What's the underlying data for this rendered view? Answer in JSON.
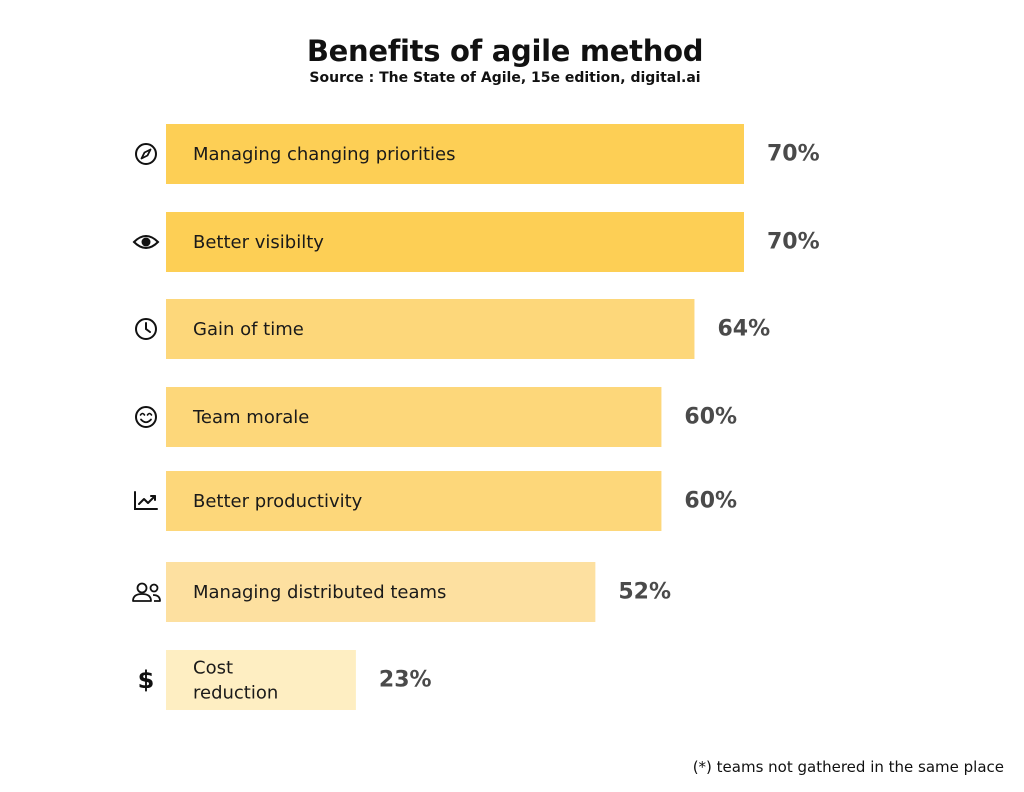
{
  "title": "Benefits of agile method",
  "subtitle": "Source : The State of Agile, 15e edition, digital.ai",
  "footnote": "(*) teams not gathered in the same place",
  "chart_data": {
    "type": "bar",
    "orientation": "horizontal",
    "title": "Benefits of agile method",
    "subtitle": "Source : The State of Agile, 15e edition, digital.ai",
    "xlabel": "",
    "ylabel": "",
    "xlim": [
      0,
      100
    ],
    "grid": false,
    "legend": "none",
    "categories": [
      "Managing changing priorities",
      "Better visibilty",
      "Gain of time",
      "Team morale",
      "Better productivity",
      "Managing distributed teams",
      "Cost reduction"
    ],
    "category_lines": [
      [
        "Managing changing priorities"
      ],
      [
        "Better visibilty"
      ],
      [
        "Gain of time"
      ],
      [
        "Team morale"
      ],
      [
        "Better productivity"
      ],
      [
        "Managing distributed teams"
      ],
      [
        "Cost",
        "reduction"
      ]
    ],
    "values": [
      70,
      70,
      64,
      60,
      60,
      52,
      23
    ],
    "value_labels": [
      "70%",
      "70%",
      "64%",
      "60%",
      "60%",
      "52%",
      "23%"
    ],
    "icons": [
      "compass-icon",
      "eye-icon",
      "clock-icon",
      "smiley-icon",
      "trend-chart-icon",
      "users-icon",
      "dollar-icon"
    ],
    "colors": [
      "#fdcf55",
      "#fdcf55",
      "#fdd77a",
      "#fdd77a",
      "#fdd77a",
      "#fde0a0",
      "#feeec2"
    ]
  }
}
